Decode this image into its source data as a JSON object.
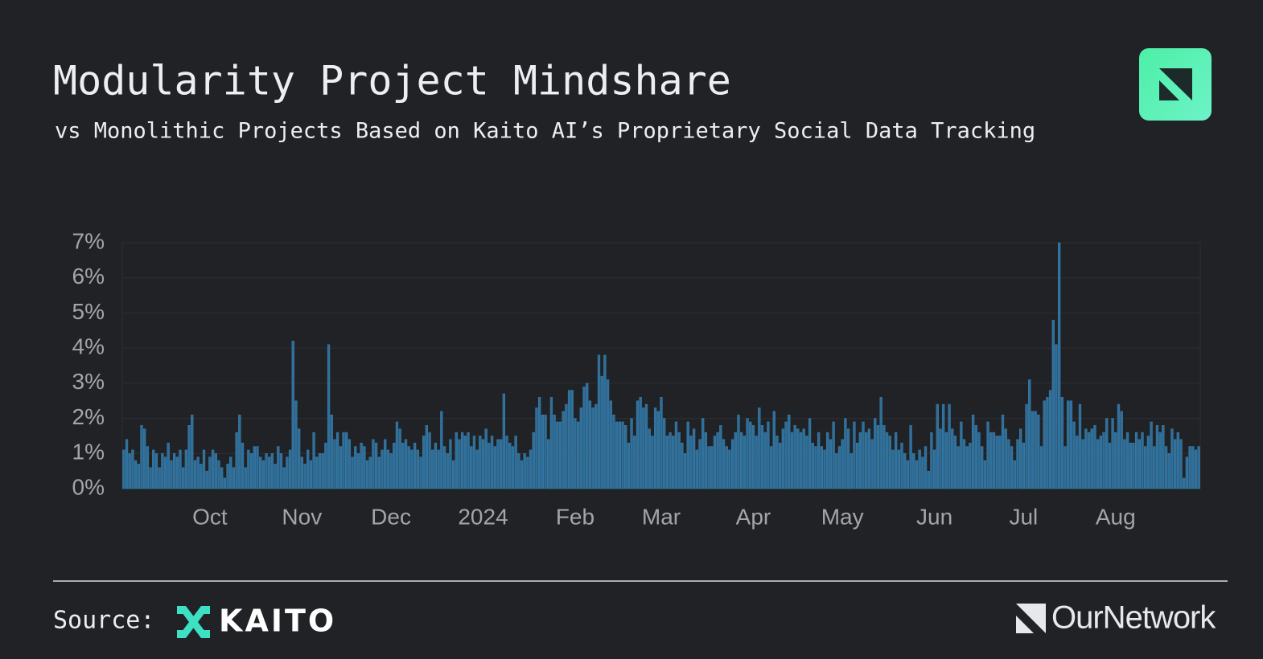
{
  "chart_data": {
    "type": "bar",
    "title": "Modularity Project Mindshare",
    "subtitle": "vs Monolithic Projects Based on Kaito AI’s Proprietary Social Data Tracking",
    "categories": [
      null,
      null,
      null,
      null,
      null,
      null,
      null,
      null,
      null,
      null,
      null,
      null,
      null,
      null,
      null,
      null,
      null,
      null,
      null,
      null,
      null,
      null,
      null,
      null,
      null,
      null,
      null,
      null,
      null,
      "Oct",
      null,
      null,
      null,
      null,
      null,
      null,
      null,
      null,
      null,
      null,
      null,
      null,
      null,
      null,
      null,
      null,
      null,
      null,
      null,
      null,
      null,
      null,
      null,
      null,
      null,
      null,
      null,
      null,
      null,
      null,
      "Nov",
      null,
      null,
      null,
      null,
      null,
      null,
      null,
      null,
      null,
      null,
      null,
      null,
      null,
      null,
      null,
      null,
      null,
      null,
      null,
      null,
      null,
      null,
      null,
      null,
      null,
      null,
      null,
      null,
      null,
      "Dec",
      null,
      null,
      null,
      null,
      null,
      null,
      null,
      null,
      null,
      null,
      null,
      null,
      null,
      null,
      null,
      null,
      null,
      null,
      null,
      null,
      null,
      null,
      null,
      null,
      null,
      null,
      null,
      null,
      null,
      null,
      "2024",
      null,
      null,
      null,
      null,
      null,
      null,
      null,
      null,
      null,
      null,
      null,
      null,
      null,
      null,
      null,
      null,
      null,
      null,
      null,
      null,
      null,
      null,
      null,
      null,
      null,
      null,
      null,
      null,
      null,
      null,
      "Feb",
      null,
      null,
      null,
      null,
      null,
      null,
      null,
      null,
      null,
      null,
      null,
      null,
      null,
      null,
      null,
      null,
      null,
      null,
      null,
      null,
      null,
      null,
      null,
      null,
      null,
      null,
      null,
      null,
      "Mar",
      null,
      null,
      null,
      null,
      null,
      null,
      null,
      null,
      null,
      null,
      null,
      null,
      null,
      null,
      null,
      null,
      null,
      null,
      null,
      null,
      null,
      null,
      null,
      null,
      null,
      null,
      null,
      null,
      null,
      null,
      "Apr",
      null,
      null,
      null,
      null,
      null,
      null,
      null,
      null,
      null,
      null,
      null,
      null,
      null,
      null,
      null,
      null,
      null,
      null,
      null,
      null,
      null,
      null,
      null,
      null,
      null,
      null,
      null,
      null,
      null,
      "May",
      null,
      null,
      null,
      null,
      null,
      null,
      null,
      null,
      null,
      null,
      null,
      null,
      null,
      null,
      null,
      null,
      null,
      null,
      null,
      null,
      null,
      null,
      null,
      null,
      null,
      null,
      null,
      null,
      null,
      null,
      "Jun",
      null,
      null,
      null,
      null,
      null,
      null,
      null,
      null,
      null,
      null,
      null,
      null,
      null,
      null,
      null,
      null,
      null,
      null,
      null,
      null,
      null,
      null,
      null,
      null,
      null,
      null,
      null,
      null,
      null,
      "Jul",
      null,
      null,
      null,
      null,
      null,
      null,
      null,
      null,
      null,
      null,
      null,
      null,
      null,
      null,
      null,
      null,
      null,
      null,
      null,
      null,
      null,
      null,
      null,
      null,
      null,
      null,
      null,
      null,
      null,
      null,
      "Aug",
      null,
      null,
      null,
      null,
      null,
      null,
      null,
      null,
      null,
      null,
      null,
      null,
      null,
      null,
      null,
      null,
      null,
      null,
      null,
      null,
      null,
      null,
      null,
      null,
      null,
      null,
      null,
      null
    ],
    "values": [
      1.1,
      1.4,
      1.0,
      1.1,
      0.8,
      0.7,
      1.8,
      1.7,
      1.2,
      0.6,
      1.1,
      1.0,
      0.6,
      1.0,
      0.9,
      1.3,
      0.8,
      1.0,
      0.9,
      1.1,
      0.6,
      1.1,
      1.8,
      2.1,
      0.8,
      0.9,
      0.7,
      1.1,
      0.5,
      0.9,
      1.1,
      1.0,
      0.8,
      0.6,
      0.3,
      0.7,
      0.9,
      0.6,
      1.6,
      2.1,
      1.3,
      0.6,
      1.1,
      1.0,
      1.2,
      1.2,
      0.9,
      0.8,
      1.0,
      0.9,
      1.0,
      0.7,
      1.2,
      1.0,
      0.6,
      0.9,
      1.1,
      4.2,
      2.5,
      1.7,
      0.9,
      0.7,
      1.1,
      0.8,
      1.6,
      0.9,
      1.0,
      1.0,
      1.3,
      4.1,
      2.1,
      1.4,
      1.6,
      1.2,
      1.6,
      1.6,
      1.4,
      0.9,
      1.2,
      1.0,
      1.3,
      1.2,
      0.8,
      0.9,
      1.4,
      1.3,
      0.9,
      1.1,
      1.4,
      1.1,
      1.0,
      1.3,
      1.9,
      1.7,
      1.3,
      1.4,
      1.2,
      1.1,
      1.3,
      1.1,
      0.9,
      1.5,
      1.8,
      1.6,
      1.1,
      1.3,
      1.1,
      2.2,
      1.2,
      1.0,
      1.4,
      0.8,
      1.6,
      1.4,
      1.6,
      1.5,
      1.6,
      1.2,
      1.5,
      1.1,
      1.5,
      1.4,
      1.7,
      1.3,
      1.5,
      1.2,
      1.4,
      1.4,
      2.7,
      1.5,
      1.3,
      1.2,
      1.5,
      1.0,
      0.8,
      1.0,
      0.9,
      1.1,
      1.6,
      2.3,
      2.6,
      2.1,
      2.1,
      1.4,
      2.6,
      2.1,
      1.9,
      1.9,
      2.2,
      2.4,
      2.8,
      2.8,
      2.0,
      1.9,
      2.3,
      2.9,
      3.0,
      2.5,
      2.3,
      2.4,
      3.8,
      3.2,
      3.8,
      3.1,
      2.5,
      2.1,
      1.9,
      1.9,
      1.9,
      1.8,
      1.3,
      2.0,
      1.5,
      2.5,
      2.6,
      2.3,
      2.4,
      1.7,
      1.5,
      2.3,
      2.2,
      2.6,
      2.0,
      1.5,
      1.6,
      1.5,
      1.9,
      1.6,
      1.3,
      1.0,
      1.9,
      1.5,
      1.7,
      1.1,
      1.4,
      2.0,
      1.6,
      1.2,
      1.2,
      1.5,
      1.6,
      1.8,
      1.4,
      1.2,
      1.1,
      1.4,
      1.6,
      2.1,
      1.6,
      1.5,
      2.0,
      1.9,
      1.8,
      1.5,
      2.3,
      1.8,
      1.6,
      1.9,
      1.2,
      2.2,
      1.5,
      1.3,
      1.7,
      1.9,
      2.1,
      1.6,
      1.8,
      1.7,
      1.6,
      1.7,
      1.5,
      2.0,
      1.3,
      1.2,
      1.6,
      1.2,
      1.1,
      1.6,
      1.4,
      1.9,
      1.0,
      1.2,
      1.4,
      2.0,
      1.7,
      1.0,
      1.9,
      1.3,
      1.6,
      1.9,
      1.6,
      1.7,
      1.4,
      2.0,
      1.8,
      2.6,
      1.8,
      1.6,
      1.5,
      1.1,
      1.6,
      1.1,
      1.3,
      1.0,
      0.8,
      1.8,
      1.0,
      0.8,
      1.1,
      0.9,
      1.2,
      0.5,
      1.6,
      1.1,
      2.4,
      1.7,
      2.4,
      1.6,
      2.4,
      1.7,
      1.5,
      1.2,
      1.9,
      1.4,
      1.2,
      1.3,
      2.1,
      1.8,
      1.6,
      1.2,
      0.8,
      1.9,
      1.6,
      1.6,
      1.5,
      1.5,
      2.1,
      1.7,
      1.4,
      1.2,
      0.8,
      1.4,
      1.7,
      1.3,
      2.4,
      3.1,
      2.2,
      2.2,
      2.1,
      1.2,
      2.5,
      2.6,
      2.8,
      4.8,
      4.1,
      7.0,
      2.6,
      1.2,
      2.5,
      2.5,
      1.9,
      1.5,
      2.4,
      1.4,
      1.7,
      1.6,
      1.7,
      1.8,
      1.4,
      1.5,
      1.6,
      2.0,
      1.3,
      2.0,
      1.6,
      2.4,
      2.2,
      1.4,
      1.6,
      1.3,
      1.3,
      1.6,
      1.4,
      1.6,
      1.2,
      1.5,
      1.9,
      1.2,
      1.8,
      1.6,
      1.8,
      1.2,
      1.0,
      1.7,
      1.4,
      1.6,
      1.4,
      0.3,
      0.9,
      1.2,
      1.2,
      1.1,
      1.2
    ],
    "color": "#2f6f9a",
    "ylim": [
      0,
      7
    ],
    "yticks": [
      {
        "value": 0,
        "label": "0%"
      },
      {
        "value": 1,
        "label": "1%"
      },
      {
        "value": 2,
        "label": "2%"
      },
      {
        "value": 3,
        "label": "3%"
      },
      {
        "value": 4,
        "label": "4%"
      },
      {
        "value": 5,
        "label": "5%"
      },
      {
        "value": 6,
        "label": "6%"
      },
      {
        "value": 7,
        "label": "7%"
      }
    ],
    "grid": true
  },
  "footer": {
    "source_label": "Source:",
    "source_name": "KAITO",
    "brand": "OurNetwork"
  }
}
